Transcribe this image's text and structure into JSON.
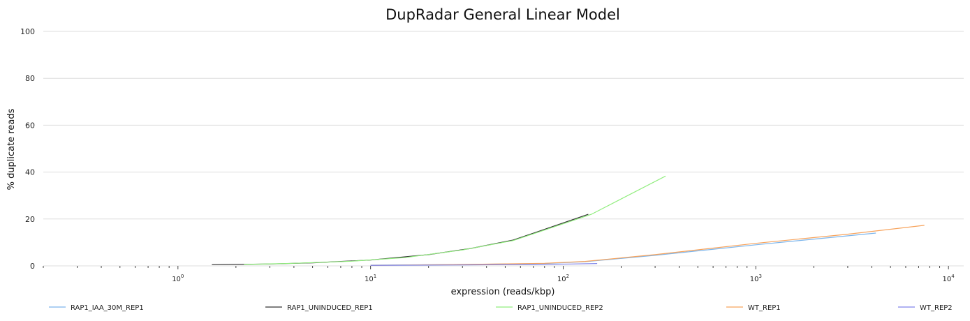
{
  "chart_data": {
    "type": "line",
    "title": "DupRadar General Linear Model",
    "xlabel": "expression (reads/kbp)",
    "ylabel": "% duplicate reads",
    "x_scale": "log",
    "xlim": [
      0.2,
      12000
    ],
    "ylim": [
      0,
      100
    ],
    "yticks": [
      0,
      20,
      40,
      60,
      80,
      100
    ],
    "xticks": [
      {
        "value": 1,
        "base": "10",
        "exp": "0"
      },
      {
        "value": 10,
        "base": "10",
        "exp": "1"
      },
      {
        "value": 100,
        "base": "10",
        "exp": "2"
      },
      {
        "value": 1000,
        "base": "10",
        "exp": "3"
      },
      {
        "value": 10000,
        "base": "10",
        "exp": "4"
      }
    ],
    "grid": true,
    "legend": "bottom",
    "series": [
      {
        "name": "RAP1_IAA_30M_REP1",
        "color": "#7cb5ec",
        "points": [
          [
            10,
            0.3
          ],
          [
            30,
            0.6
          ],
          [
            80,
            1.0
          ],
          [
            130,
            1.8
          ],
          [
            300,
            4.5
          ],
          [
            1000,
            9.0
          ],
          [
            4200,
            14.0
          ]
        ]
      },
      {
        "name": "RAP1_UNINDUCED_REP1",
        "color": "#333333",
        "points": [
          [
            1.5,
            0.5
          ],
          [
            3,
            0.8
          ],
          [
            5,
            1.3
          ],
          [
            10,
            2.5
          ],
          [
            20,
            4.8
          ],
          [
            33,
            7.4
          ],
          [
            55,
            11.0
          ],
          [
            135,
            22.0
          ]
        ]
      },
      {
        "name": "RAP1_UNINDUCED_REP2",
        "color": "#90ed7d",
        "points": [
          [
            2.2,
            0.6
          ],
          [
            4,
            1.1
          ],
          [
            8,
            2.0
          ],
          [
            15,
            3.5
          ],
          [
            30,
            6.8
          ],
          [
            55,
            10.8
          ],
          [
            140,
            22.0
          ],
          [
            340,
            38.3
          ]
        ]
      },
      {
        "name": "WT_REP1",
        "color": "#f7a35c",
        "points": [
          [
            10,
            0.2
          ],
          [
            30,
            0.6
          ],
          [
            80,
            1.1
          ],
          [
            130,
            1.9
          ],
          [
            300,
            4.8
          ],
          [
            1000,
            9.6
          ],
          [
            3000,
            13.5
          ],
          [
            7500,
            17.3
          ]
        ]
      },
      {
        "name": "WT_REP2",
        "color": "#8085e9",
        "points": [
          [
            10,
            0.2
          ],
          [
            30,
            0.4
          ],
          [
            70,
            0.6
          ],
          [
            110,
            0.8
          ],
          [
            150,
            1.0
          ]
        ]
      }
    ]
  }
}
